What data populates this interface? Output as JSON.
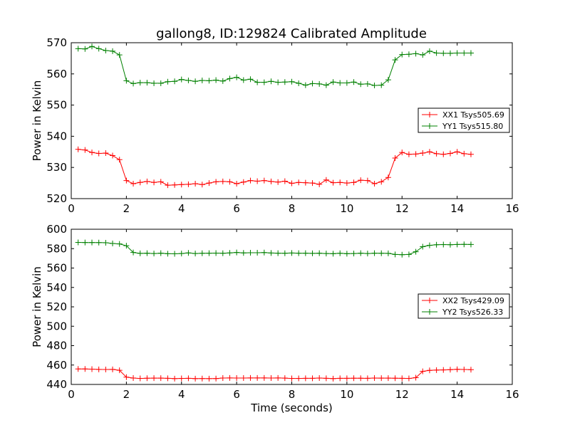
{
  "title": "gallong8, ID:129824 Calibrated Amplitude",
  "chart_data": [
    {
      "type": "line",
      "ylabel": "Power in Kelvin",
      "xlabel": "",
      "xlim": [
        0,
        16
      ],
      "ylim": [
        520,
        570
      ],
      "xticks": [
        "0",
        "2",
        "4",
        "6",
        "8",
        "10",
        "12",
        "14",
        "16"
      ],
      "yticks": [
        "520",
        "530",
        "540",
        "550",
        "560",
        "570"
      ],
      "legend_position": "right",
      "series": [
        {
          "name": "XX1 Tsys505.69",
          "color": "#ff0000",
          "x": [
            0.25,
            0.5,
            0.75,
            1.0,
            1.25,
            1.5,
            1.75,
            2.0,
            2.25,
            2.5,
            2.75,
            3.0,
            3.25,
            3.5,
            3.75,
            4.0,
            4.25,
            4.5,
            4.75,
            5.0,
            5.25,
            5.5,
            5.75,
            6.0,
            6.25,
            6.5,
            6.75,
            7.0,
            7.25,
            7.5,
            7.75,
            8.0,
            8.25,
            8.5,
            8.75,
            9.0,
            9.25,
            9.5,
            9.75,
            10.0,
            10.25,
            10.5,
            10.75,
            11.0,
            11.25,
            11.5,
            11.75,
            12.0,
            12.25,
            12.5,
            12.75,
            13.0,
            13.25,
            13.5,
            13.75,
            14.0,
            14.25,
            14.5
          ],
          "y": [
            535.8,
            535.6,
            534.8,
            534.5,
            534.6,
            533.8,
            532.5,
            525.8,
            524.8,
            525.2,
            525.5,
            525.2,
            525.4,
            524.3,
            524.4,
            524.5,
            524.6,
            524.8,
            524.5,
            525.0,
            525.4,
            525.5,
            525.4,
            524.8,
            525.3,
            525.8,
            525.6,
            525.8,
            525.5,
            525.3,
            525.6,
            524.9,
            525.2,
            525.1,
            525.0,
            524.6,
            526.0,
            525.1,
            525.2,
            525.0,
            525.2,
            525.9,
            525.8,
            524.8,
            525.4,
            526.8,
            533.0,
            534.8,
            534.2,
            534.3,
            534.6,
            535.0,
            534.4,
            534.2,
            534.5,
            535.0,
            534.4,
            534.2
          ]
        },
        {
          "name": "YY1 Tsys515.80",
          "color": "#008000",
          "x": [
            0.25,
            0.5,
            0.75,
            1.0,
            1.25,
            1.5,
            1.75,
            2.0,
            2.25,
            2.5,
            2.75,
            3.0,
            3.25,
            3.5,
            3.75,
            4.0,
            4.25,
            4.5,
            4.75,
            5.0,
            5.25,
            5.5,
            5.75,
            6.0,
            6.25,
            6.5,
            6.75,
            7.0,
            7.25,
            7.5,
            7.75,
            8.0,
            8.25,
            8.5,
            8.75,
            9.0,
            9.25,
            9.5,
            9.75,
            10.0,
            10.25,
            10.5,
            10.75,
            11.0,
            11.25,
            11.5,
            11.75,
            12.0,
            12.25,
            12.5,
            12.75,
            13.0,
            13.25,
            13.5,
            13.75,
            14.0,
            14.25,
            14.5
          ],
          "y": [
            568.1,
            568.0,
            568.8,
            568.1,
            567.5,
            567.3,
            566.1,
            557.8,
            556.9,
            557.2,
            557.2,
            557.0,
            557.0,
            557.5,
            557.6,
            558.2,
            557.9,
            557.6,
            557.9,
            557.8,
            558.0,
            557.7,
            558.5,
            558.9,
            558.0,
            558.3,
            557.3,
            557.3,
            557.6,
            557.3,
            557.4,
            557.5,
            557.0,
            556.4,
            556.9,
            556.8,
            556.4,
            557.4,
            557.1,
            557.1,
            557.4,
            556.7,
            556.8,
            556.3,
            556.4,
            558.1,
            564.5,
            566.2,
            566.3,
            566.5,
            566.1,
            567.3,
            566.7,
            566.6,
            566.6,
            566.7,
            566.7,
            566.7
          ]
        }
      ]
    },
    {
      "type": "line",
      "ylabel": "Power in Kelvin",
      "xlabel": "Time (seconds)",
      "xlim": [
        0,
        16
      ],
      "ylim": [
        440,
        600
      ],
      "xticks": [
        "0",
        "2",
        "4",
        "6",
        "8",
        "10",
        "12",
        "14",
        "16"
      ],
      "yticks": [
        "440",
        "460",
        "480",
        "500",
        "520",
        "540",
        "560",
        "580",
        "600"
      ],
      "legend_position": "right",
      "series": [
        {
          "name": "XX2 Tsys429.09",
          "color": "#ff0000",
          "x": [
            0.25,
            0.5,
            0.75,
            1.0,
            1.25,
            1.5,
            1.75,
            2.0,
            2.25,
            2.5,
            2.75,
            3.0,
            3.25,
            3.5,
            3.75,
            4.0,
            4.25,
            4.5,
            4.75,
            5.0,
            5.25,
            5.5,
            5.75,
            6.0,
            6.25,
            6.5,
            6.75,
            7.0,
            7.25,
            7.5,
            7.75,
            8.0,
            8.25,
            8.5,
            8.75,
            9.0,
            9.25,
            9.5,
            9.75,
            10.0,
            10.25,
            10.5,
            10.75,
            11.0,
            11.25,
            11.5,
            11.75,
            12.0,
            12.25,
            12.5,
            12.75,
            13.0,
            13.25,
            13.5,
            13.75,
            14.0,
            14.25,
            14.5
          ],
          "y": [
            456,
            456,
            455.8,
            455.5,
            455.4,
            455.5,
            454.6,
            447.5,
            446.6,
            446.2,
            446.4,
            446.5,
            446.5,
            446.3,
            446.0,
            446.2,
            446.3,
            446.0,
            446.1,
            446.0,
            446.1,
            446.6,
            446.7,
            446.6,
            446.6,
            446.7,
            446.7,
            446.7,
            446.6,
            446.7,
            446.5,
            446.2,
            446.2,
            446.3,
            446.3,
            446.6,
            446.3,
            446.0,
            446.3,
            446.3,
            446.4,
            446.4,
            446.3,
            446.6,
            446.5,
            446.5,
            446.4,
            446.3,
            446.2,
            447.0,
            453.5,
            454.5,
            454.8,
            455.0,
            455.2,
            455.6,
            455.4,
            455.2
          ]
        },
        {
          "name": "YY2 Tsys526.33",
          "color": "#008000",
          "x": [
            0.25,
            0.5,
            0.75,
            1.0,
            1.25,
            1.5,
            1.75,
            2.0,
            2.25,
            2.5,
            2.75,
            3.0,
            3.25,
            3.5,
            3.75,
            4.0,
            4.25,
            4.5,
            4.75,
            5.0,
            5.25,
            5.5,
            5.75,
            6.0,
            6.25,
            6.5,
            6.75,
            7.0,
            7.25,
            7.5,
            7.75,
            8.0,
            8.25,
            8.5,
            8.75,
            9.0,
            9.25,
            9.5,
            9.75,
            10.0,
            10.25,
            10.5,
            10.75,
            11.0,
            11.25,
            11.5,
            11.75,
            12.0,
            12.25,
            12.5,
            12.75,
            13.0,
            13.25,
            13.5,
            13.75,
            14.0,
            14.25,
            14.5
          ],
          "y": [
            586.4,
            586.3,
            586.3,
            586.2,
            586.1,
            585.3,
            584.9,
            583.0,
            576.1,
            575.1,
            575.3,
            575.0,
            575.3,
            574.8,
            574.7,
            575.0,
            575.6,
            575.0,
            575.2,
            575.3,
            575.4,
            575.2,
            575.6,
            576.1,
            575.6,
            575.8,
            575.8,
            576.0,
            575.5,
            575.3,
            575.2,
            575.5,
            575.3,
            575.3,
            575.1,
            575.3,
            575.0,
            574.8,
            575.2,
            574.8,
            575.0,
            575.3,
            575.0,
            575.3,
            575.2,
            575.1,
            574.0,
            573.8,
            574.0,
            576.8,
            582.0,
            583.4,
            584.0,
            584.2,
            584.0,
            584.3,
            584.4,
            584.3
          ]
        }
      ]
    }
  ]
}
